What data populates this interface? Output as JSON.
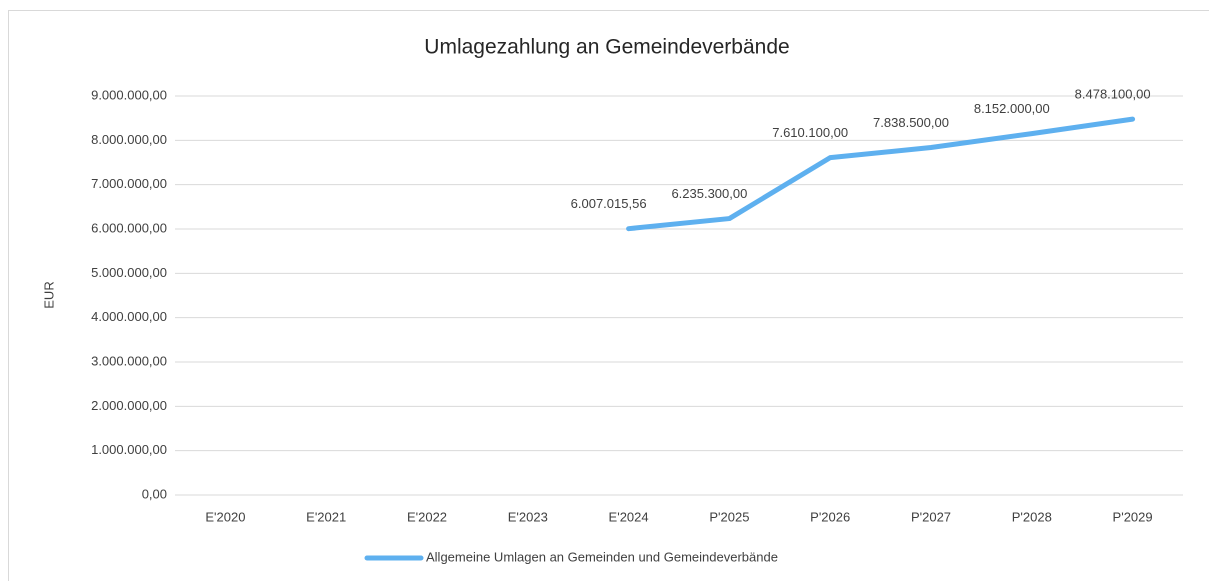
{
  "chart_data": {
    "type": "line",
    "title": "Umlagezahlung an Gemeindeverbände",
    "y_label": "EUR",
    "categories": [
      "E'2020",
      "E'2021",
      "E'2022",
      "E'2023",
      "E'2024",
      "P'2025",
      "P'2026",
      "P'2027",
      "P'2028",
      "P'2029"
    ],
    "series": [
      {
        "name": "Allgemeine Umlagen an Gemeinden und Gemeindeverbände",
        "color": "#5eb0ef",
        "values": [
          null,
          null,
          null,
          null,
          6007015.56,
          6235300,
          7610100,
          7838500,
          8152000,
          8478100
        ],
        "value_labels": [
          null,
          null,
          null,
          null,
          "6.007.015,56",
          "6.235.300,00",
          "7.610.100,00",
          "7.838.500,00",
          "8.152.000,00",
          "8.478.100,00"
        ]
      }
    ],
    "ylim": [
      0,
      9000000
    ],
    "yticks": [
      {
        "value": 0,
        "label": "0,00"
      },
      {
        "value": 1000000,
        "label": "1.000.000,00"
      },
      {
        "value": 2000000,
        "label": "2.000.000,00"
      },
      {
        "value": 3000000,
        "label": "3.000.000,00"
      },
      {
        "value": 4000000,
        "label": "4.000.000,00"
      },
      {
        "value": 5000000,
        "label": "5.000.000,00"
      },
      {
        "value": 6000000,
        "label": "6.000.000,00"
      },
      {
        "value": 7000000,
        "label": "7.000.000,00"
      },
      {
        "value": 8000000,
        "label": "8.000.000,00"
      },
      {
        "value": 9000000,
        "label": "9.000.000,00"
      }
    ],
    "grid": true,
    "legend": "bottom"
  }
}
